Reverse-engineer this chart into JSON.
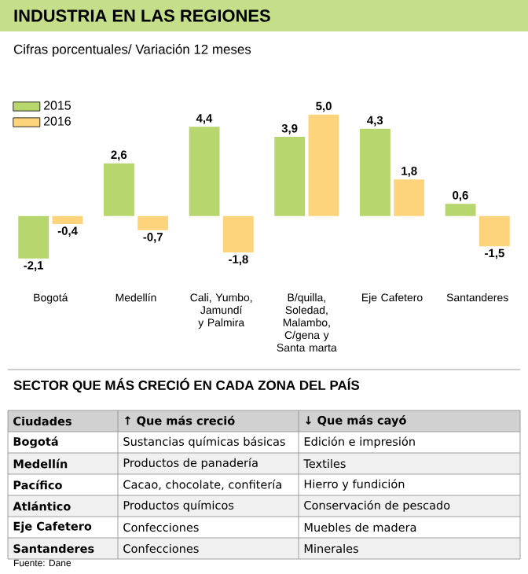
{
  "chart_data": [
    {
      "type": "bar",
      "title": "INDUSTRIA EN LAS REGIONES",
      "subtitle": "Cifras porcentuales/ Variación 12 meses",
      "categories": [
        "Bogotá",
        "Medellín",
        "Cali, Yumbo, Jamundí y Palmira",
        "B/quilla, Soledad, Malambo, C/gena y Santa marta",
        "Eje Cafetero",
        "Santanderes"
      ],
      "series": [
        {
          "name": "2015",
          "color": "#b8d66e",
          "values": [
            -2.1,
            2.6,
            4.4,
            3.9,
            4.3,
            0.6
          ],
          "value_labels": [
            "-2,1",
            "2,6",
            "4,4",
            "3,9",
            "4,3",
            "0,6"
          ]
        },
        {
          "name": "2016",
          "color": "#fdd47c",
          "values": [
            -0.4,
            -0.7,
            -1.8,
            5.0,
            1.8,
            -1.5
          ],
          "value_labels": [
            "-0,4",
            "-0,7",
            "-1,8",
            "5,0",
            "1,8",
            "-1,5"
          ]
        }
      ],
      "legend": "top left",
      "annotations": [
        "Fuente: Dane"
      ]
    },
    {
      "type": "other",
      "title": "SECTOR QUE MÁS CRECIÓ EN CADA ZONA DEL PAÍS",
      "annotations": [
        "Ciudades",
        "↑ Que más creció",
        "↓ Que más cayó",
        "Bogotá",
        "Sustancias químicas básicas",
        "Edición e impresión",
        "Medellín",
        "Productos de panadería",
        "Textiles",
        "Pacífico",
        "Cacao, chocolate, confitería",
        "Hierro y fundición",
        "Atlántico",
        "Productos químicos",
        "Conservación de pescado",
        "Eje Cafetero",
        "Confecciones",
        "Muebles de madera",
        "Santanderes",
        "Confecciones",
        "Minerales"
      ]
    }
  ]
}
